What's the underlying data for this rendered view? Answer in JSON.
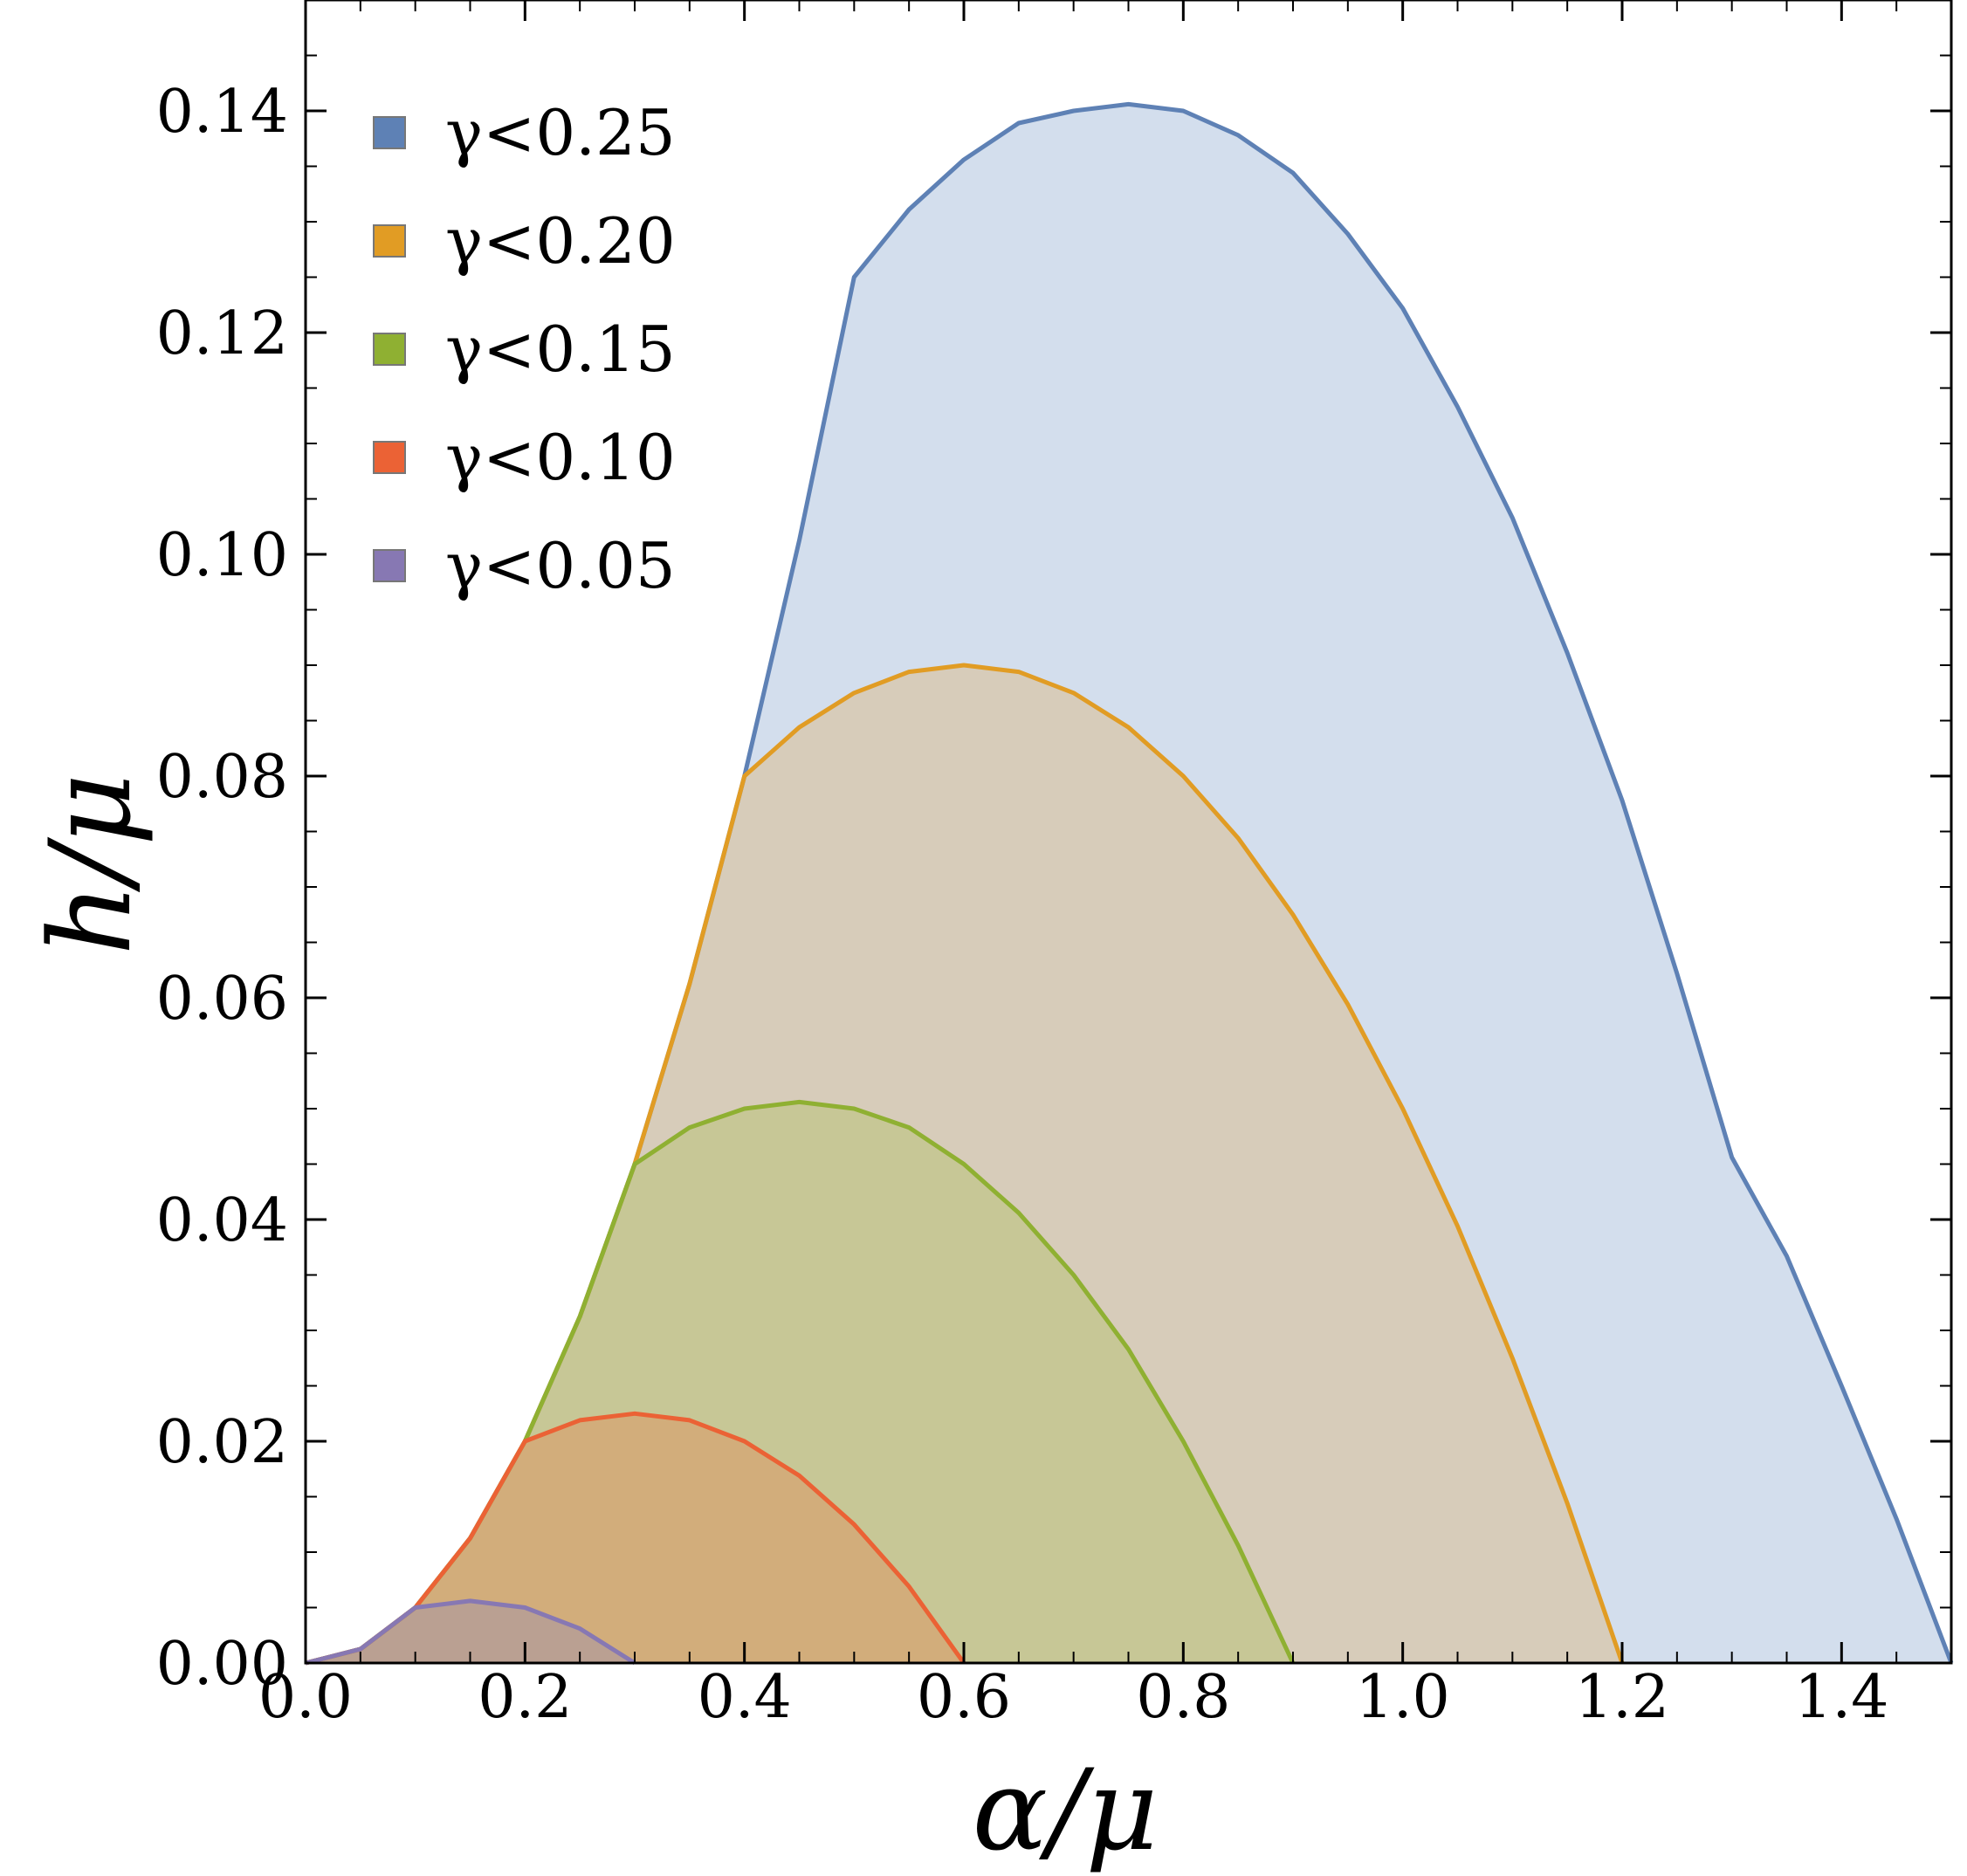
{
  "chart_data": {
    "type": "area",
    "xlabel": "α/μ",
    "ylabel": "h/μ",
    "xlim": [
      0,
      1.5
    ],
    "ylim": [
      0,
      0.15
    ],
    "xticks": [
      "0.0",
      "0.2",
      "0.4",
      "0.6",
      "0.8",
      "1.0",
      "1.2",
      "1.4"
    ],
    "yticks": [
      "0.00",
      "0.02",
      "0.04",
      "0.06",
      "0.08",
      "0.10",
      "0.12",
      "0.14"
    ],
    "legend_position": "top-left",
    "grid": false,
    "series": [
      {
        "name": "γ<0.25",
        "color": "#5e81b5",
        "fill": "#cbd8ea",
        "x": [
          0.0,
          0.05,
          0.1,
          0.15,
          0.2,
          0.25,
          0.3,
          0.35,
          0.4,
          0.45,
          0.5,
          0.55,
          0.6,
          0.65,
          0.7,
          0.75,
          0.8,
          0.85,
          0.9,
          0.95,
          1.0,
          1.05,
          1.1,
          1.15,
          1.2,
          1.25,
          1.3,
          1.35,
          1.4,
          1.45,
          1.5
        ],
        "y": [
          0.0,
          0.00125,
          0.005,
          0.01125,
          0.02,
          0.03125,
          0.045,
          0.06125,
          0.08,
          0.10125,
          0.125,
          0.1311,
          0.1356,
          0.1389,
          0.14,
          0.1406,
          0.14,
          0.1378,
          0.1344,
          0.1289,
          0.1222,
          0.1133,
          0.1033,
          0.0911,
          0.0778,
          0.0622,
          0.0456,
          0.0367,
          0.025,
          0.013,
          0.0
        ]
      },
      {
        "name": "γ<0.20",
        "color": "#e19c24",
        "fill": "#d7c9b0",
        "x": [
          0.0,
          0.05,
          0.1,
          0.15,
          0.2,
          0.25,
          0.3,
          0.35,
          0.4,
          0.45,
          0.5,
          0.55,
          0.6,
          0.65,
          0.7,
          0.75,
          0.8,
          0.85,
          0.9,
          0.95,
          1.0,
          1.05,
          1.1,
          1.15,
          1.2
        ],
        "y": [
          0.0,
          0.00125,
          0.005,
          0.01125,
          0.02,
          0.03125,
          0.045,
          0.06125,
          0.08,
          0.0844,
          0.0875,
          0.0894,
          0.09,
          0.0894,
          0.0875,
          0.0844,
          0.08,
          0.0744,
          0.0675,
          0.0594,
          0.05,
          0.0394,
          0.0275,
          0.0144,
          0.0
        ]
      },
      {
        "name": "γ<0.15",
        "color": "#8fb032",
        "fill": "#c4c68f",
        "x": [
          0.0,
          0.05,
          0.1,
          0.15,
          0.2,
          0.25,
          0.3,
          0.35,
          0.4,
          0.45,
          0.5,
          0.55,
          0.6,
          0.65,
          0.7,
          0.75,
          0.8,
          0.85,
          0.9
        ],
        "y": [
          0.0,
          0.00125,
          0.005,
          0.01125,
          0.02,
          0.03125,
          0.045,
          0.0483,
          0.05,
          0.0506,
          0.05,
          0.0483,
          0.045,
          0.0406,
          0.035,
          0.0283,
          0.02,
          0.0106,
          0.0
        ]
      },
      {
        "name": "γ<0.10",
        "color": "#eb6235",
        "fill": "#d4a877",
        "x": [
          0.0,
          0.05,
          0.1,
          0.15,
          0.2,
          0.25,
          0.3,
          0.35,
          0.4,
          0.45,
          0.5,
          0.55,
          0.6
        ],
        "y": [
          0.0,
          0.00125,
          0.005,
          0.01125,
          0.02,
          0.0219,
          0.0225,
          0.0219,
          0.02,
          0.0169,
          0.0125,
          0.0069,
          0.0
        ]
      },
      {
        "name": "γ<0.05",
        "color": "#8778b3",
        "fill": "#b69d96",
        "x": [
          0.0,
          0.05,
          0.1,
          0.15,
          0.2,
          0.25,
          0.3
        ],
        "y": [
          0.0,
          0.00125,
          0.005,
          0.0056,
          0.005,
          0.0031,
          0.0
        ]
      }
    ]
  }
}
